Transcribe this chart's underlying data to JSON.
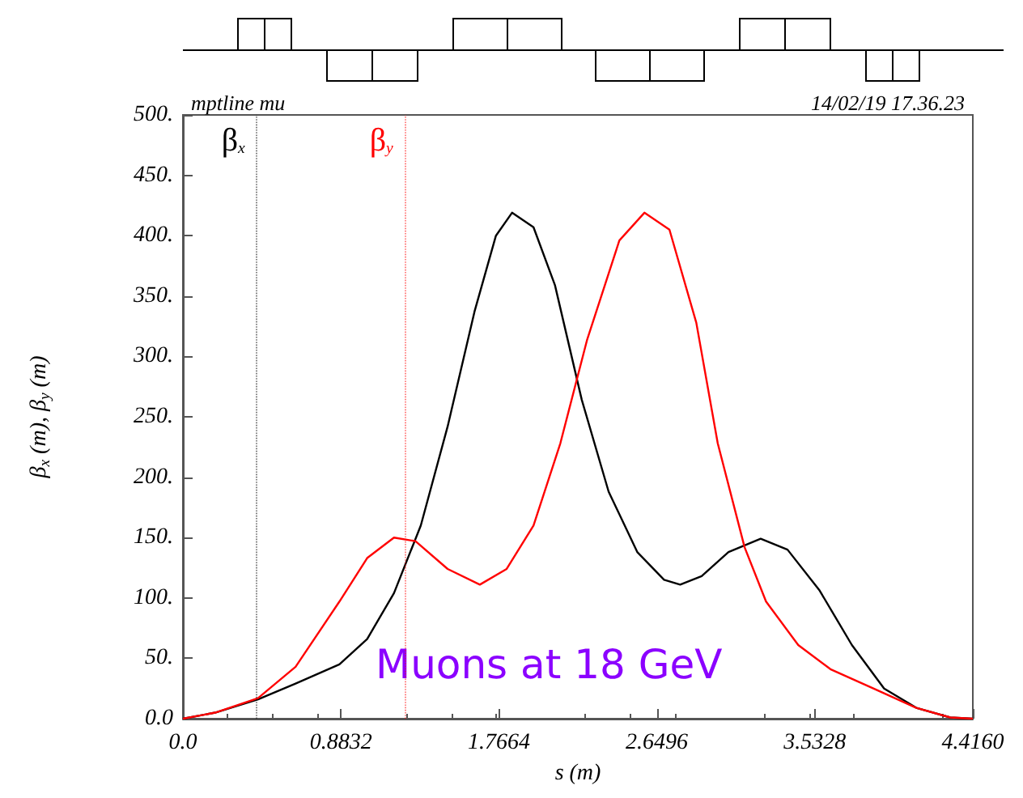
{
  "chart_data": {
    "type": "line",
    "title": "mptline mu",
    "subtitle": "14/02/19 17.36.23",
    "xlabel": "s (m)",
    "ylabel": "β$_{x}$ (m), β$_{y}$ (m)",
    "annotations": [
      "Muons at 18 GeV"
    ],
    "xlim": [
      0,
      4.416
    ],
    "xticks": [
      {
        "value": 0,
        "label": "0.0"
      },
      {
        "value": 0.8832,
        "label": "0.8832"
      },
      {
        "value": 1.7664,
        "label": "1.7664"
      },
      {
        "value": 2.6496,
        "label": "2.6496"
      },
      {
        "value": 3.5328,
        "label": "3.5328"
      },
      {
        "value": 4.416,
        "label": "4.4160"
      }
    ],
    "ylim": [
      0,
      500
    ],
    "yticks": [
      {
        "value": 0,
        "label": "0.0"
      },
      {
        "value": 50,
        "label": "50."
      },
      {
        "value": 100,
        "label": "100."
      },
      {
        "value": 150,
        "label": "150."
      },
      {
        "value": 200,
        "label": "200."
      },
      {
        "value": 250,
        "label": "250."
      },
      {
        "value": 300,
        "label": "300."
      },
      {
        "value": 350,
        "label": "350."
      },
      {
        "value": 400,
        "label": "400."
      },
      {
        "value": 450,
        "label": "450."
      },
      {
        "value": 500,
        "label": "500."
      }
    ],
    "grid": false,
    "marker": "none",
    "line_style": "solid",
    "series": [
      {
        "color": "#000000",
        "x": [
          0,
          0.18,
          0.42,
          0.63,
          0.875,
          1.03,
          1.18,
          1.33,
          1.48,
          1.63,
          1.75,
          1.84,
          1.96,
          2.08,
          2.23,
          2.38,
          2.54,
          2.69,
          2.78,
          2.9,
          3.05,
          3.23,
          3.38,
          3.56,
          3.74,
          3.92,
          4.1,
          4.29,
          4.416
        ],
        "values": [
          0,
          5,
          16,
          29,
          45,
          66,
          104,
          160,
          242,
          337,
          400,
          419,
          407,
          359,
          264,
          188,
          138,
          115,
          111,
          118,
          138,
          149,
          140,
          106,
          61,
          25,
          9,
          1,
          0
        ]
      },
      {
        "color": "#ff0000",
        "x": [
          0,
          0.18,
          0.42,
          0.63,
          0.875,
          1.03,
          1.18,
          1.3,
          1.48,
          1.66,
          1.81,
          1.96,
          2.11,
          2.26,
          2.44,
          2.58,
          2.72,
          2.87,
          2.99,
          3.14,
          3.26,
          3.44,
          3.62,
          3.86,
          4.1,
          4.29,
          4.416
        ],
        "values": [
          0,
          5,
          17,
          43,
          97,
          133,
          150,
          147,
          124,
          111,
          124,
          160,
          228,
          314,
          396,
          419,
          405,
          328,
          228,
          142,
          97,
          61,
          41,
          25,
          9,
          1,
          0
        ]
      }
    ],
    "ref_lines": [
      {
        "axis": "x",
        "value": 0.415,
        "label": "β$_{x}$",
        "color": "#000000",
        "line_style": "dotted"
      },
      {
        "axis": "x",
        "value": 1.243,
        "label": "β$_{y}$",
        "color": "#ff0000",
        "line_style": "dotted"
      }
    ]
  }
}
